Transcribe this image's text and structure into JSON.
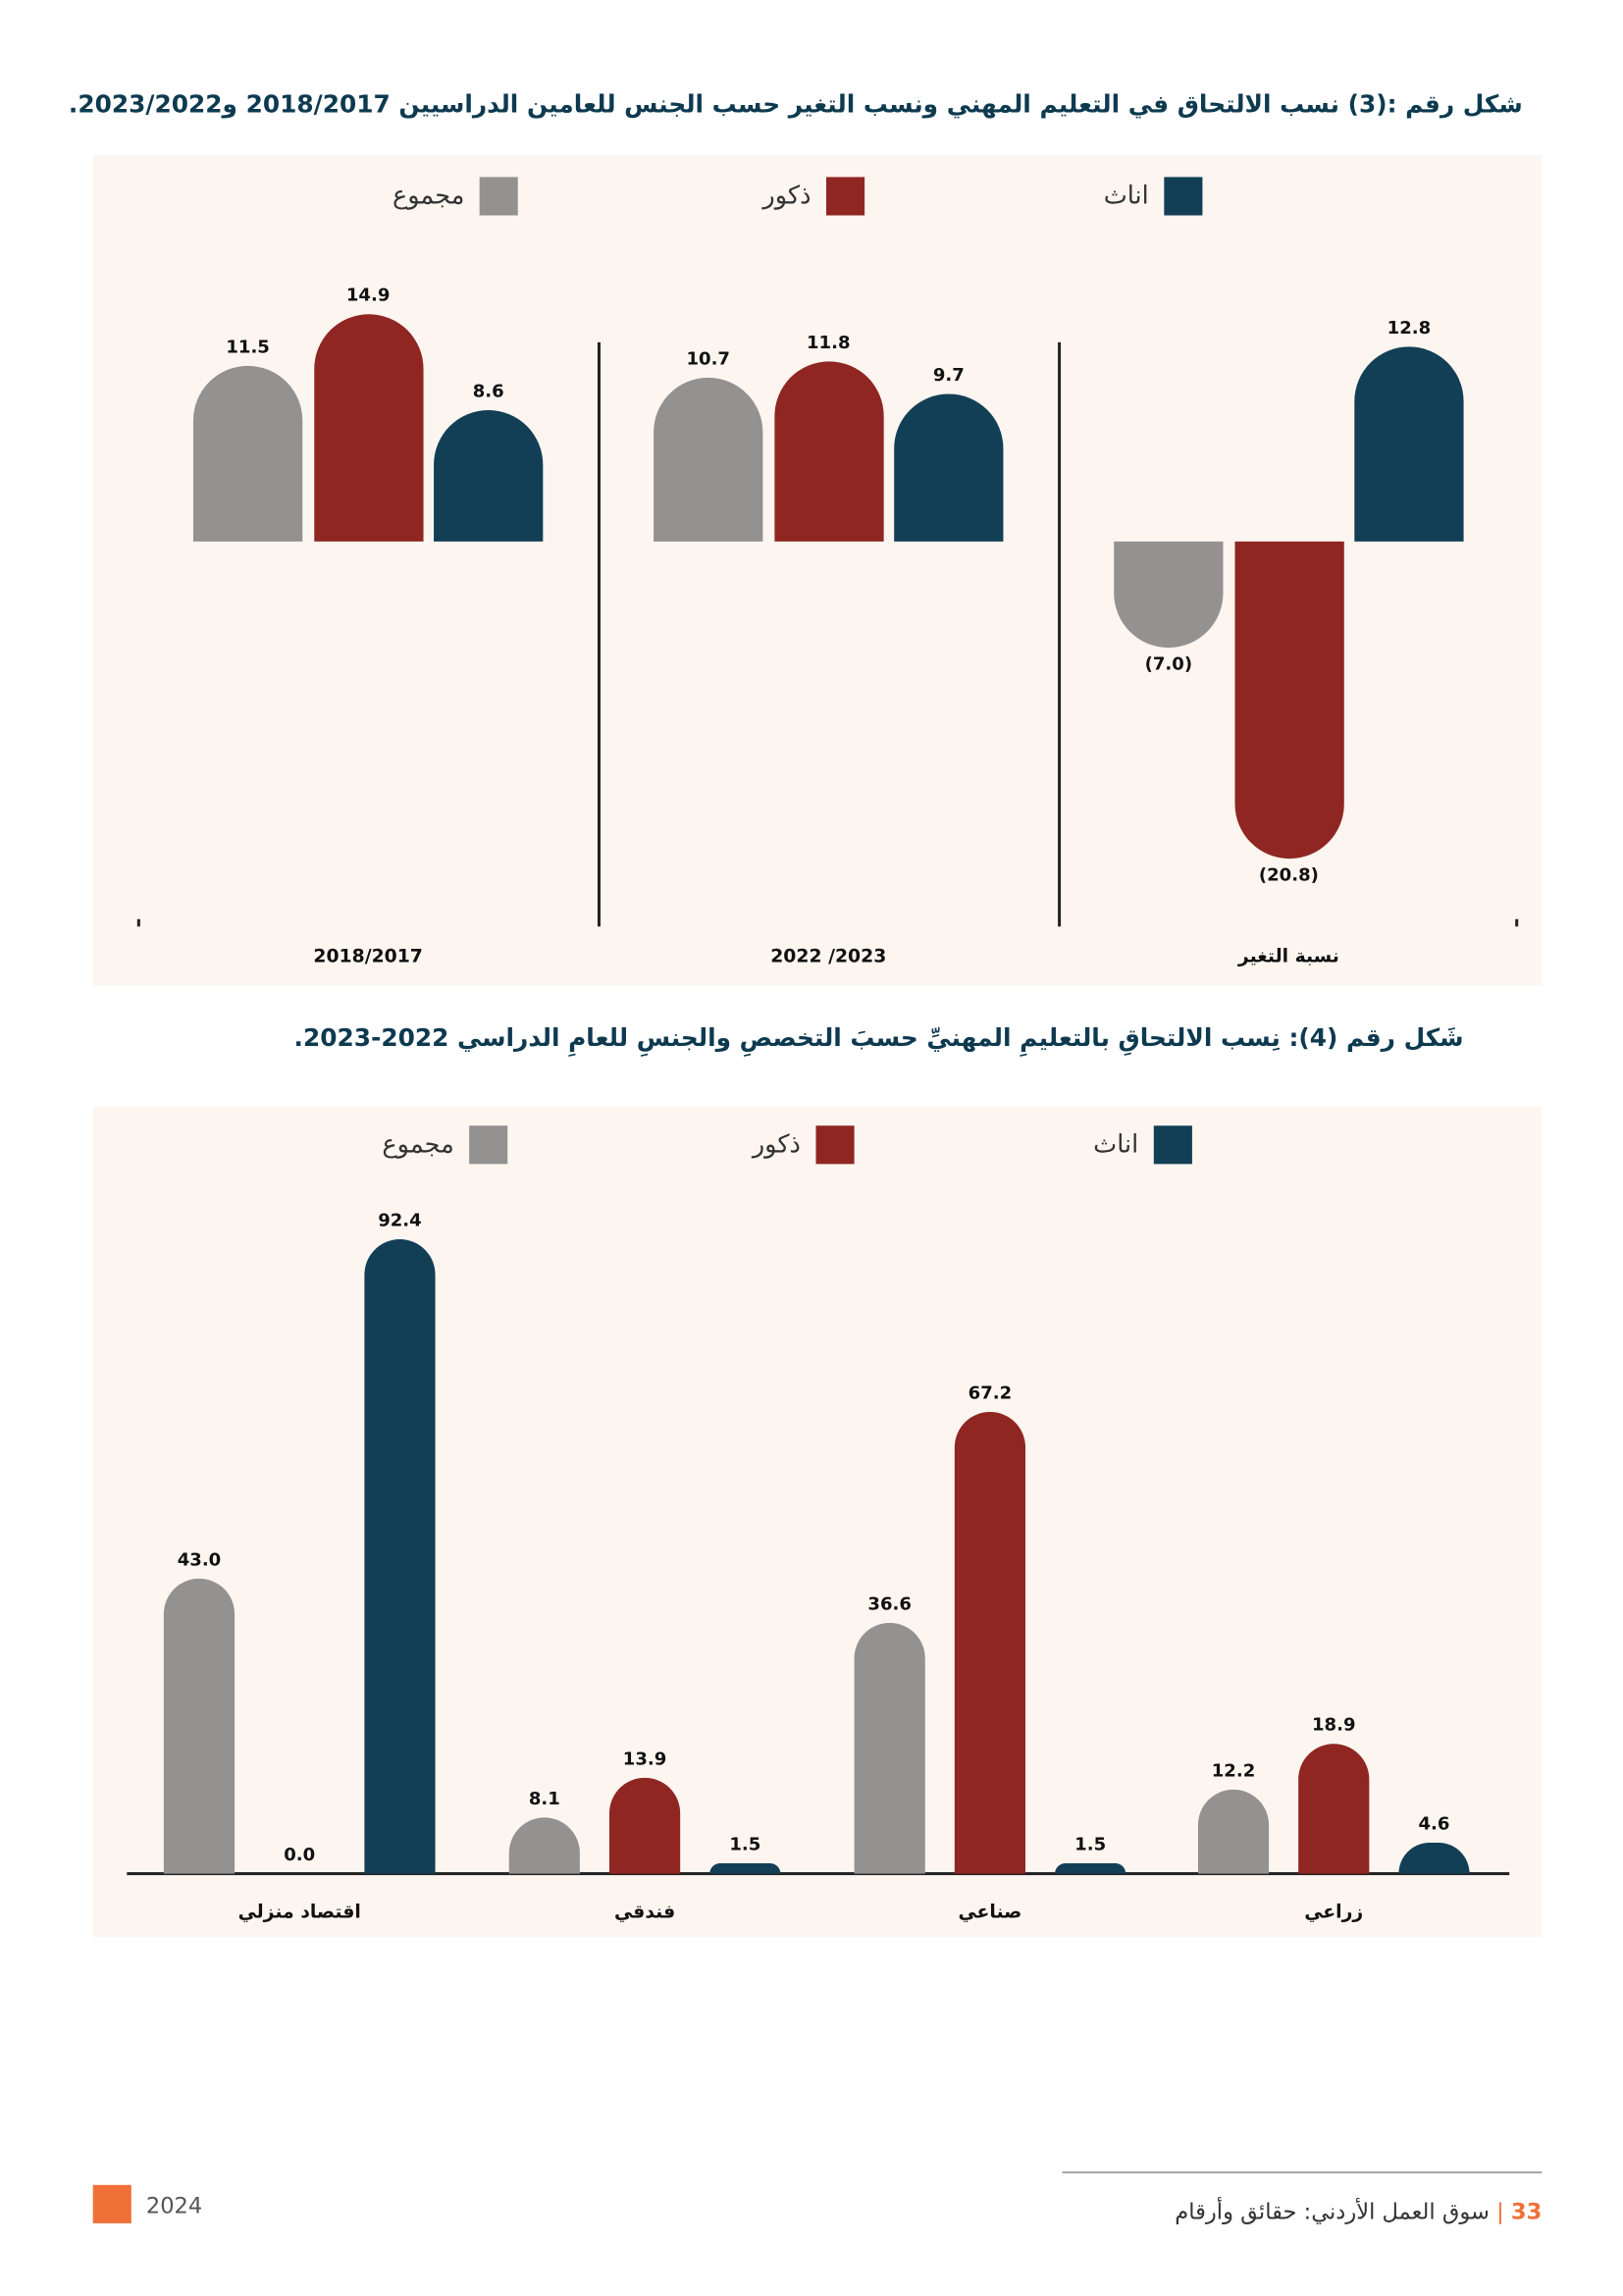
{
  "colors": {
    "total": "#939291",
    "male": "#8f2622",
    "female": "#123f55",
    "accent": "#f07038",
    "panel": "#fcf5f0"
  },
  "legend": {
    "total": "مجموع",
    "male": "ذكور",
    "female": "اناث"
  },
  "chart_data": [
    {
      "type": "bar",
      "title": "شكل رقم :(3) نسب الالتحاق في التعليم المهني ونسب التغير حسب الجنس للعامين الدراسيين 2018/2017 و2023/2022.",
      "categories": [
        "2018/2017",
        "2023/ 2022",
        "نسبة التغير"
      ],
      "series": [
        {
          "name": "مجموع",
          "values": [
            11.5,
            10.7,
            -7.0
          ]
        },
        {
          "name": "ذكور",
          "values": [
            14.9,
            11.8,
            -20.8
          ]
        },
        {
          "name": "اناث",
          "values": [
            8.6,
            9.7,
            12.8
          ]
        }
      ],
      "legend_position": "top",
      "grid": false
    },
    {
      "type": "bar",
      "title": "شَكل رقم (4): نِسب الالتحاقِ بالتعليمِ المهنيِّ حسبَ التخصصِ والجنسِ للعامِ الدراسي 2022-2023.",
      "categories": [
        "اقتصاد منزلي",
        "فندقي",
        "صناعي",
        "زراعي"
      ],
      "series": [
        {
          "name": "مجموع",
          "values": [
            43.0,
            8.1,
            36.6,
            12.2
          ]
        },
        {
          "name": "ذكور",
          "values": [
            0.0,
            13.9,
            67.2,
            18.9
          ]
        },
        {
          "name": "اناث",
          "values": [
            92.4,
            1.5,
            1.5,
            4.6
          ]
        }
      ],
      "legend_position": "top",
      "grid": false
    }
  ],
  "footer": {
    "year": "2024",
    "page": "33",
    "sep": "|",
    "book": "سوق العمل الأردني: حقائق وأرقام"
  }
}
